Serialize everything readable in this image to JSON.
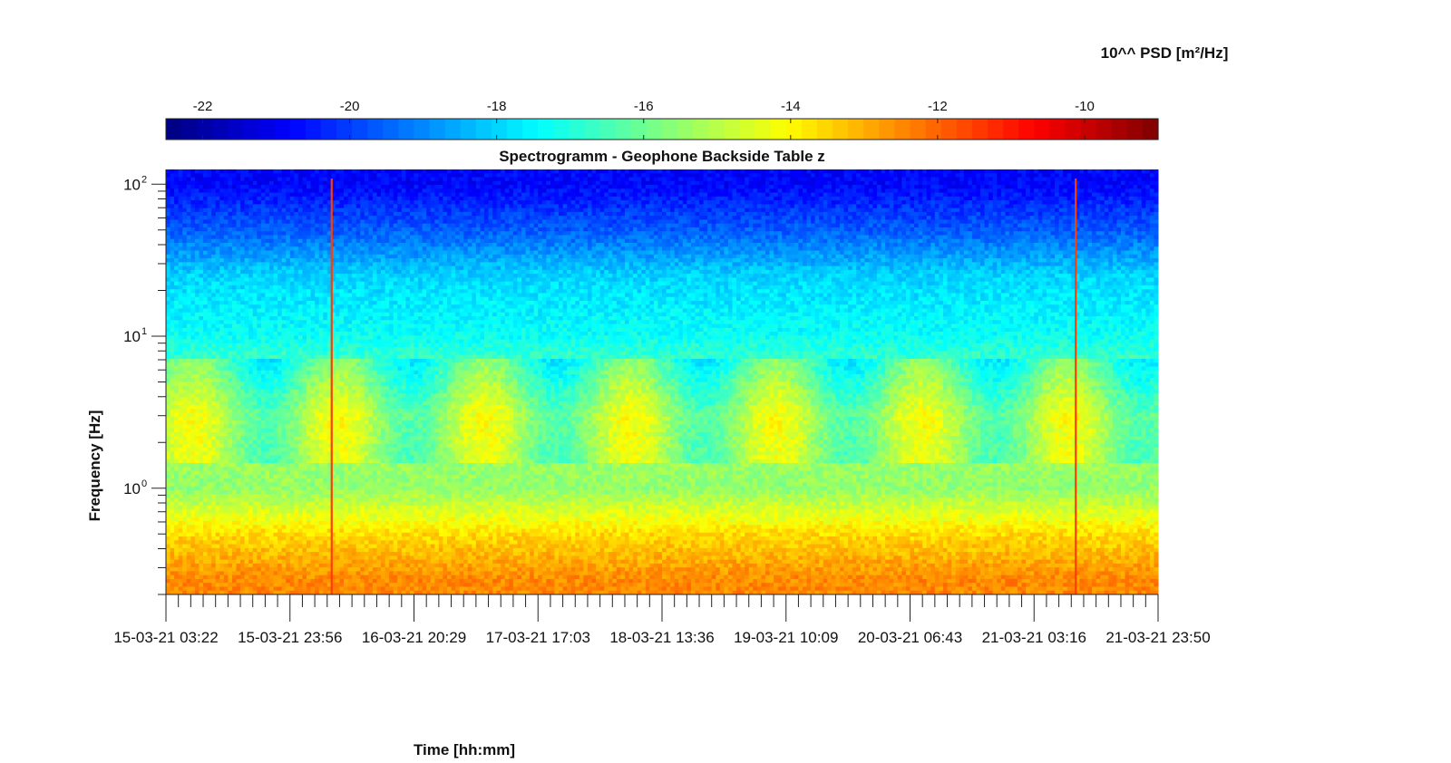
{
  "chart_data": {
    "type": "heatmap",
    "title": "Spectrogramm - Geophone Backside Table z",
    "xlabel": "Time [hh:mm]",
    "ylabel": "Frequency [Hz]",
    "y_scale": "log",
    "ylim": [
      0.2,
      125
    ],
    "y_ticks": [
      {
        "base": "10",
        "exp": "0",
        "value": 1
      },
      {
        "base": "10",
        "exp": "1",
        "value": 10
      },
      {
        "base": "10",
        "exp": "2",
        "value": 100
      }
    ],
    "x_tick_labels": [
      "15-03-21 03:22",
      "15-03-21 23:56",
      "16-03-21 20:29",
      "17-03-21 17:03",
      "18-03-21 13:36",
      "19-03-21 10:09",
      "20-03-21 06:43",
      "21-03-21 03:16",
      "21-03-21 23:50"
    ],
    "colorbar": {
      "title": "10^^ PSD [m²/Hz]",
      "range": [
        -22.5,
        -9
      ],
      "tick_labels": [
        "-22",
        "-20",
        "-18",
        "-16",
        "-14",
        "-12",
        "-10"
      ],
      "tick_values": [
        -22,
        -20,
        -18,
        -16,
        -14,
        -12,
        -10
      ],
      "colormap": "jet"
    },
    "psd_profile": [
      {
        "freq": 100,
        "log10_psd": -20.8
      },
      {
        "freq": 50,
        "log10_psd": -19.6
      },
      {
        "freq": 25,
        "log10_psd": -18.0
      },
      {
        "freq": 10,
        "log10_psd": -17.3
      },
      {
        "freq": 3,
        "log10_psd": -15.2
      },
      {
        "freq": 1,
        "log10_psd": -15.5
      },
      {
        "freq": 0.5,
        "log10_psd": -13.6
      },
      {
        "freq": 0.25,
        "log10_psd": -12.5
      }
    ],
    "events": [
      {
        "time": "15-03-21 23:56",
        "note": "broadband vertical line"
      },
      {
        "time": "21-03-21 03:16",
        "note": "broadband vertical line"
      }
    ]
  }
}
